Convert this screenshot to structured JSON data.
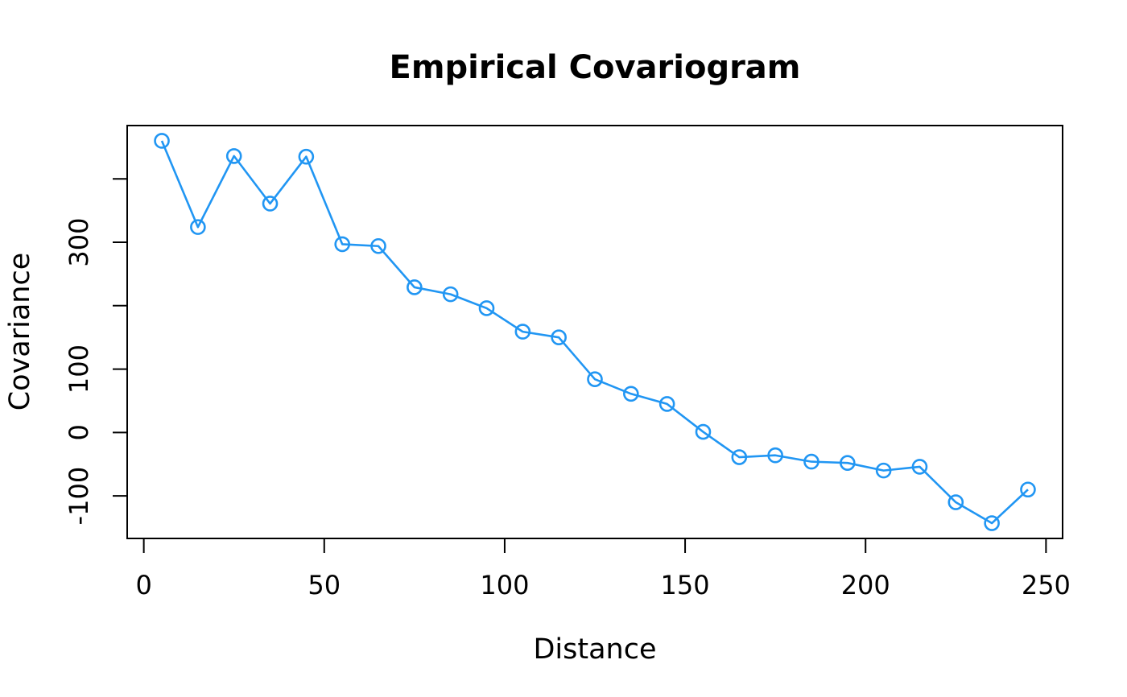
{
  "chart_data": {
    "type": "line",
    "title": "Empirical Covariogram",
    "xlabel": "Distance",
    "ylabel": "Covariance",
    "marker": "open-circle",
    "marker_radius": 8.5,
    "line_color": "#2196F3",
    "axis_color": "#000000",
    "background": "#FFFFFF",
    "grid": false,
    "legend": "none",
    "x": [
      5,
      15,
      25,
      35,
      45,
      55,
      65,
      75,
      85,
      95,
      105,
      115,
      125,
      135,
      145,
      155,
      165,
      175,
      185,
      195,
      205,
      215,
      225,
      235,
      245
    ],
    "y": [
      460,
      324,
      436,
      361,
      435,
      297,
      294,
      229,
      218,
      196,
      159,
      150,
      84,
      61,
      45,
      1,
      -39,
      -36,
      -46,
      -48,
      -60,
      -54,
      -110,
      -143,
      -90
    ],
    "xlim": [
      -4.6,
      254.6
    ],
    "ylim": [
      -167.1,
      484.1
    ],
    "x_ticks": [
      {
        "v": 0,
        "label": "0"
      },
      {
        "v": 50,
        "label": "50"
      },
      {
        "v": 100,
        "label": "100"
      },
      {
        "v": 150,
        "label": "150"
      },
      {
        "v": 200,
        "label": "200"
      },
      {
        "v": 250,
        "label": "250"
      }
    ],
    "y_ticks": [
      {
        "v": -100,
        "label": "-100"
      },
      {
        "v": 0,
        "label": "0"
      },
      {
        "v": 100,
        "label": "100"
      },
      {
        "v": 200,
        "label": ""
      },
      {
        "v": 300,
        "label": "300"
      },
      {
        "v": 400,
        "label": ""
      }
    ]
  }
}
